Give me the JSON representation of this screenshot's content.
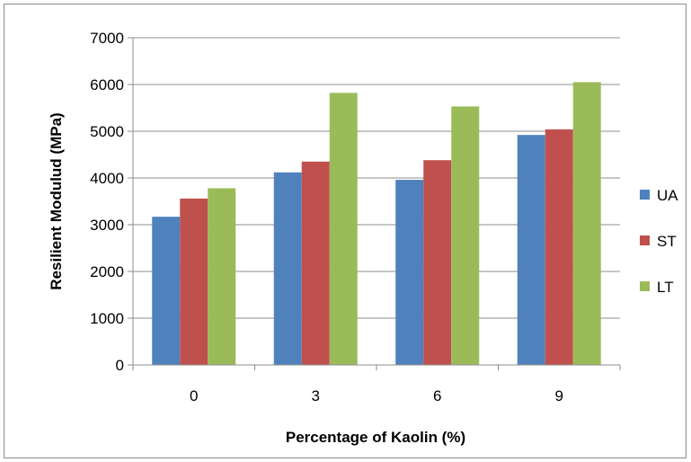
{
  "chart_data": {
    "type": "bar",
    "title": "",
    "xlabel": "Percentage of Kaolin (%)",
    "ylabel": "Resilient Modulud (MPa)",
    "categories": [
      "0",
      "3",
      "6",
      "9"
    ],
    "ylim": [
      0,
      7000
    ],
    "yticks": [
      0,
      1000,
      2000,
      3000,
      4000,
      5000,
      6000,
      7000
    ],
    "grid": true,
    "legend_position": "right",
    "series": [
      {
        "name": "UA",
        "color": "#4f81bd",
        "values": [
          3170,
          4120,
          3960,
          4920
        ]
      },
      {
        "name": "ST",
        "color": "#c0504d",
        "values": [
          3560,
          4350,
          4380,
          5040
        ]
      },
      {
        "name": "LT",
        "color": "#9bbb59",
        "values": [
          3780,
          5820,
          5530,
          6050
        ]
      }
    ]
  }
}
